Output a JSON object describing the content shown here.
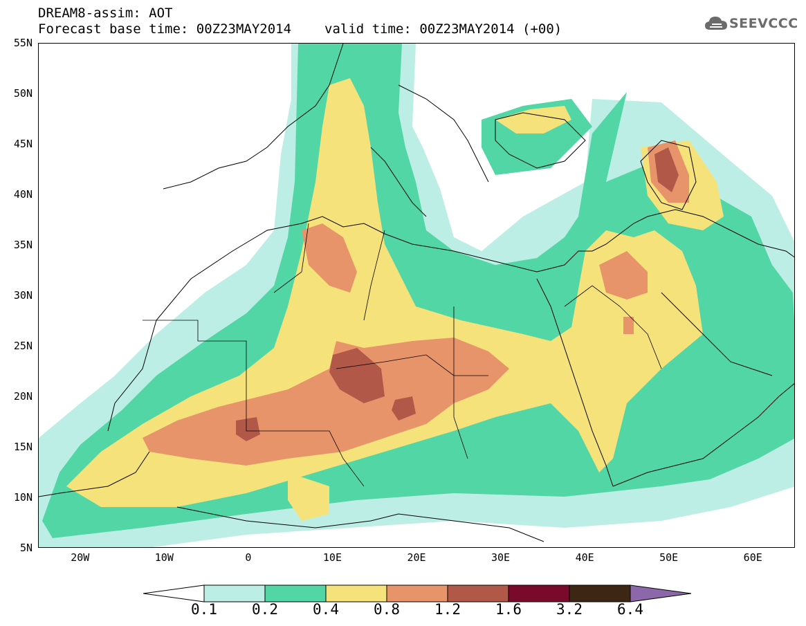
{
  "header": {
    "title_line1": "DREAM8-assim: AOT",
    "forecast_base": "Forecast base time: 00Z23MAY2014",
    "valid_time": "valid time: 00Z23MAY2014 (+00)",
    "logo_text": "SEEVCCC",
    "logo_icon": "cloud-icon"
  },
  "map": {
    "variable": "AOT",
    "lat_labels": [
      "55N",
      "50N",
      "45N",
      "40N",
      "35N",
      "30N",
      "25N",
      "20N",
      "15N",
      "10N",
      "5N"
    ],
    "lon_labels": [
      "20W",
      "10W",
      "0",
      "10E",
      "20E",
      "30E",
      "40E",
      "50E",
      "60E"
    ],
    "lat_range": [
      5,
      55
    ],
    "lon_range": [
      -25,
      65
    ]
  },
  "colorbar": {
    "levels": [
      "0.1",
      "0.2",
      "0.4",
      "0.8",
      "1.2",
      "1.6",
      "3.2",
      "6.4"
    ],
    "colors": [
      "#ffffff",
      "#bdeee5",
      "#53d6a6",
      "#f6e27a",
      "#e8946a",
      "#b25848",
      "#7a0a2c",
      "#3d2614",
      "#8c68aa"
    ]
  },
  "colors": {
    "c01": "#bdeee5",
    "c02": "#53d6a6",
    "c04": "#f6e27a",
    "c08": "#e8946a",
    "c12": "#b25848",
    "border": "#000000"
  }
}
